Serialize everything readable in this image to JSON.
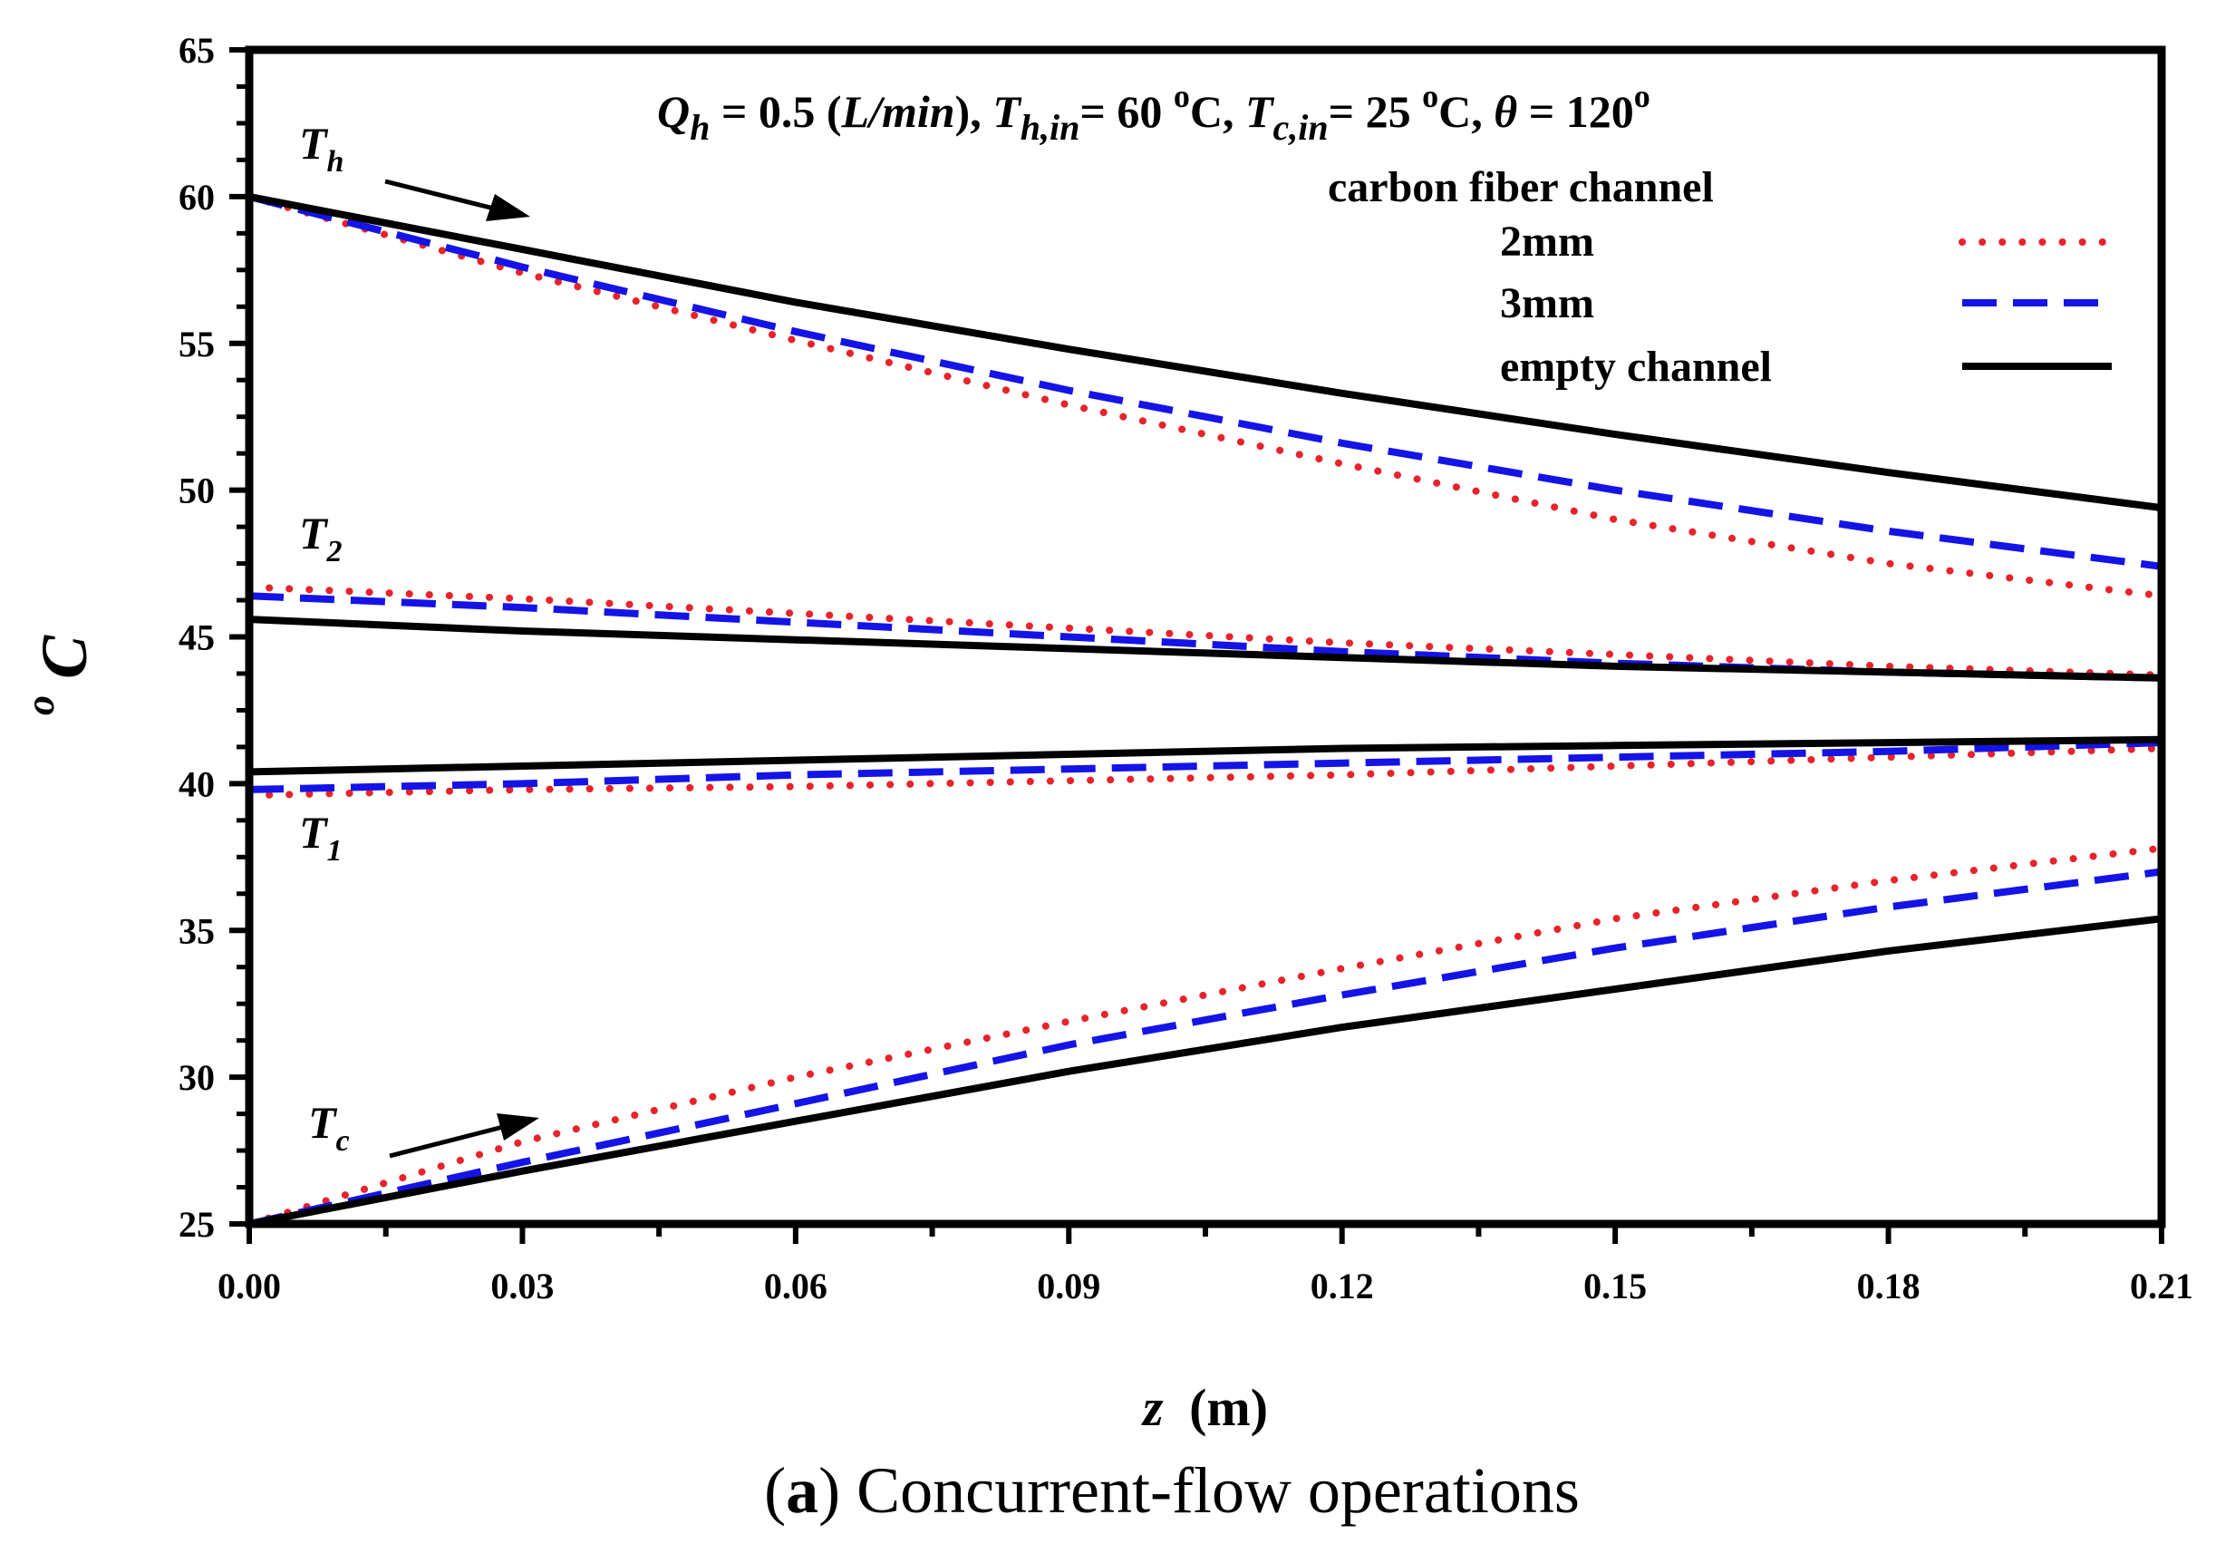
{
  "chart_data": {
    "type": "line",
    "xlabel": "z (m)",
    "xlabel_var": "z",
    "xlabel_unit": "(m)",
    "ylabel": "oC",
    "ylabel_sup": "o",
    "ylabel_main": "C",
    "xlim": [
      0,
      0.21
    ],
    "ylim": [
      25,
      65
    ],
    "x_ticks": [
      0,
      0.03,
      0.06,
      0.09,
      0.12,
      0.15,
      0.18,
      0.21
    ],
    "x_tick_labels": [
      "0.00",
      "0.03",
      "0.06",
      "0.09",
      "0.12",
      "0.15",
      "0.18",
      "0.21"
    ],
    "y_ticks": [
      25,
      30,
      35,
      40,
      45,
      50,
      55,
      60,
      65
    ],
    "y_tick_labels": [
      "25",
      "30",
      "35",
      "40",
      "45",
      "50",
      "55",
      "60",
      "65"
    ],
    "conditions": {
      "q_sym": "Q",
      "q_sub": "h",
      "q_val": " = 0.5 (",
      "q_unit": "L/min",
      "q_close": "), ",
      "th_sym": "T",
      "th_sub": "h,in",
      "th_val": "= 60 ",
      "th_sup": "o",
      "th_unit": "C, ",
      "tc_sym": "T",
      "tc_sub": "c,in",
      "tc_val": "= 25 ",
      "tc_sup": "o",
      "tc_unit": "C, ",
      "theta_sym": "θ",
      "theta_val": " = 120",
      "theta_sup": "o"
    },
    "legend": {
      "title": "carbon fiber channel",
      "entries": [
        {
          "label": "2mm",
          "color": "#e8232a",
          "style": "dotted"
        },
        {
          "label": "3mm",
          "color": "#1414e6",
          "style": "dashed"
        },
        {
          "label": "empty channel",
          "color": "#000000",
          "style": "solid"
        }
      ]
    },
    "annotations": [
      {
        "main": "T",
        "sub": "h"
      },
      {
        "main": "T",
        "sub": "2"
      },
      {
        "main": "T",
        "sub": "1"
      },
      {
        "main": "T",
        "sub": "c"
      }
    ],
    "x": [
      0,
      0.03,
      0.06,
      0.09,
      0.12,
      0.15,
      0.18,
      0.21
    ],
    "series": [
      {
        "name": "Th 2mm",
        "group": "2mm",
        "values": [
          60,
          57.4,
          55.1,
          52.9,
          50.9,
          49.0,
          47.5,
          46.4
        ]
      },
      {
        "name": "Th 3mm",
        "group": "3mm",
        "values": [
          60,
          57.6,
          55.4,
          53.4,
          51.6,
          50.0,
          48.6,
          47.4
        ]
      },
      {
        "name": "Th empty",
        "group": "empty channel",
        "values": [
          60,
          58.2,
          56.4,
          54.8,
          53.3,
          51.9,
          50.6,
          49.4
        ]
      },
      {
        "name": "T2 2mm",
        "group": "2mm",
        "values": [
          46.7,
          46.3,
          45.8,
          45.3,
          44.8,
          44.4,
          44.0,
          43.7
        ]
      },
      {
        "name": "T2 3mm",
        "group": "3mm",
        "values": [
          46.4,
          46.0,
          45.5,
          45.0,
          44.5,
          44.1,
          43.8,
          43.6
        ]
      },
      {
        "name": "T2 empty",
        "group": "empty channel",
        "values": [
          45.6,
          45.2,
          44.9,
          44.6,
          44.3,
          44.0,
          43.8,
          43.6
        ]
      },
      {
        "name": "T1 2mm",
        "group": "2mm",
        "values": [
          39.6,
          39.8,
          39.9,
          40.1,
          40.3,
          40.6,
          40.9,
          41.2
        ]
      },
      {
        "name": "T1 3mm",
        "group": "3mm",
        "values": [
          39.8,
          40.0,
          40.3,
          40.5,
          40.7,
          40.9,
          41.1,
          41.4
        ]
      },
      {
        "name": "T1 empty",
        "group": "empty channel",
        "values": [
          40.4,
          40.6,
          40.8,
          41.0,
          41.2,
          41.3,
          41.4,
          41.5
        ]
      },
      {
        "name": "Tc 2mm",
        "group": "2mm",
        "values": [
          25.0,
          27.8,
          30.0,
          31.9,
          33.7,
          35.4,
          36.7,
          37.8
        ]
      },
      {
        "name": "Tc 3mm",
        "group": "3mm",
        "values": [
          25.0,
          27.1,
          29.1,
          31.1,
          32.8,
          34.4,
          35.8,
          37.0
        ]
      },
      {
        "name": "Tc empty",
        "group": "empty channel",
        "values": [
          25.0,
          26.8,
          28.5,
          30.2,
          31.7,
          33.0,
          34.3,
          35.4
        ]
      }
    ]
  },
  "caption": {
    "bold": "a",
    "open": "(",
    "rest": ") Concurrent-flow operations"
  },
  "colors": {
    "dotted": "#e8232a",
    "dashed": "#1414e6",
    "solid": "#000000"
  }
}
